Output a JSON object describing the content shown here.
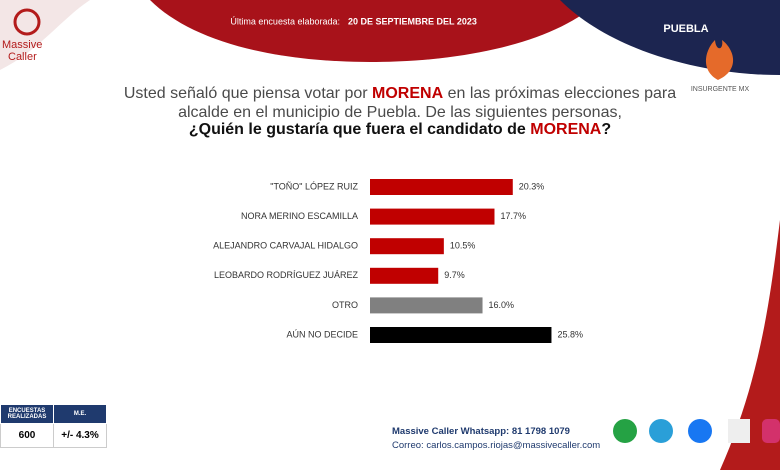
{
  "header": {
    "label": "Última encuesta elaborada:",
    "date": "20 DE SEPTIEMBRE DEL 2023",
    "region": "PUEBLA",
    "logo": "Massive",
    "logo2": "Caller",
    "watermark": "INSURGENTE MX"
  },
  "question": [
    "Usted señaló que piensa votar por ",
    "MORENA",
    " en las próximas elecciones para alcalde en el municipio de Puebla.  De las siguientes personas,"
  ],
  "chart_data": {
    "type": "barh",
    "title": [
      "¿Quién le gustaría que fuera el candidato de ",
      "MORENA",
      "?"
    ],
    "categories": [
      "\"TOÑO\" LÓPEZ RUIZ",
      "NORA MERINO ESCAMILLA",
      "ALEJANDRO CARVAJAL HIDALGO",
      "LEOBARDO RODRÍGUEZ JUÁREZ",
      "OTRO",
      "AÚN NO DECIDE"
    ],
    "values": [
      20.3,
      17.7,
      10.5,
      9.7,
      16.0,
      25.8
    ],
    "value_labels": [
      "20.3%",
      "17.7%",
      "10.5%",
      "9.7%",
      "16.0%",
      "25.8%"
    ],
    "colors": [
      "#c00000",
      "#c00000",
      "#c00000",
      "#c00000",
      "#808080",
      "#000000"
    ],
    "xlim": [
      0,
      30
    ]
  },
  "footer": {
    "table_headers": [
      "ENCUESTAS REALIZADAS",
      "M.E."
    ],
    "table_values": [
      "600",
      "+/- 4.3%"
    ],
    "whatsapp": "Massive Caller Whatsapp: 81 1798 1079",
    "email": "Correo: carlos.campos.riojas@massivecaller.com"
  }
}
